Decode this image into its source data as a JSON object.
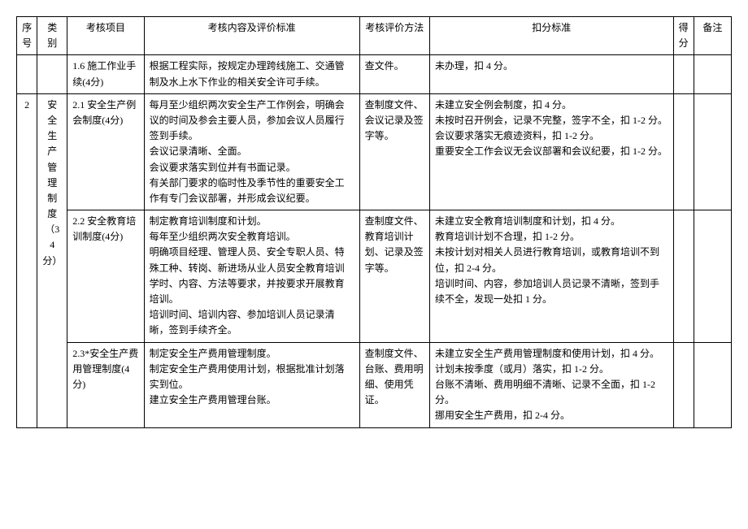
{
  "headers": {
    "seq": "序号",
    "category": "类别",
    "item": "考核项目",
    "content": "考核内容及评价标准",
    "method": "考核评价方法",
    "deduct": "扣分标准",
    "score": "得分",
    "remark": "备注"
  },
  "rows": [
    {
      "seq": "",
      "category": "",
      "item": "1.6 施工作业手续(4分)",
      "content": "根据工程实际，按规定办理跨线施工、交通管制及水上水下作业的相关安全许可手续。",
      "method": "查文件。",
      "deduct": "未办理，扣 4 分。",
      "score": "",
      "remark": ""
    },
    {
      "seq": "2",
      "category": "安全生产管理制度（34分）",
      "item": "2.1 安全生产例会制度(4分)",
      "content": "每月至少组织两次安全生产工作例会，明确会议的时间及参会主要人员，参加会议人员履行签到手续。\n会议记录清晰、全面。\n会议要求落实到位并有书面记录。\n有关部门要求的临时性及季节性的重要安全工作有专门会议部署，并形成会议纪要。",
      "method": "查制度文件、会议记录及签字等。",
      "deduct": "未建立安全例会制度，扣 4 分。\n未按时召开例会，记录不完整，签字不全，扣 1-2 分。\n会议要求落实无痕迹资料，扣 1-2 分。\n重要安全工作会议无会议部署和会议纪要，扣 1-2 分。",
      "score": "",
      "remark": ""
    },
    {
      "seq": "",
      "category": "",
      "item": "2.2 安全教育培训制度(4分)",
      "content": "制定教育培训制度和计划。\n每年至少组织两次安全教育培训。\n明确项目经理、管理人员、安全专职人员、特殊工种、转岗、新进场从业人员安全教育培训学时、内容、方法等要求，并按要求开展教育培训。\n培训时间、培训内容、参加培训人员记录清晰，签到手续齐全。",
      "method": "查制度文件、教育培训计划、记录及签字等。",
      "deduct": "未建立安全教育培训制度和计划，扣 4 分。\n教育培训计划不合理，扣 1-2 分。\n未按计划对相关人员进行教育培训，或教育培训不到位，扣 2-4 分。\n培训时间、内容，参加培训人员记录不清晰，签到手续不全，发现一处扣 1 分。",
      "score": "",
      "remark": ""
    },
    {
      "seq": "",
      "category": "",
      "item": "2.3*安全生产费用管理制度(4分)",
      "content": "制定安全生产费用管理制度。\n制定安全生产费用使用计划，根据批准计划落实到位。\n建立安全生产费用管理台账。",
      "method": "查制度文件、台账、费用明细、使用凭证。",
      "deduct": "未建立安全生产费用管理制度和使用计划，扣 4 分。\n计划未按季度（或月）落实，扣 1-2 分。\n台账不清晰、费用明细不清晰、记录不全面，扣 1-2 分。\n挪用安全生产费用，扣 2-4 分。",
      "score": "",
      "remark": ""
    }
  ]
}
